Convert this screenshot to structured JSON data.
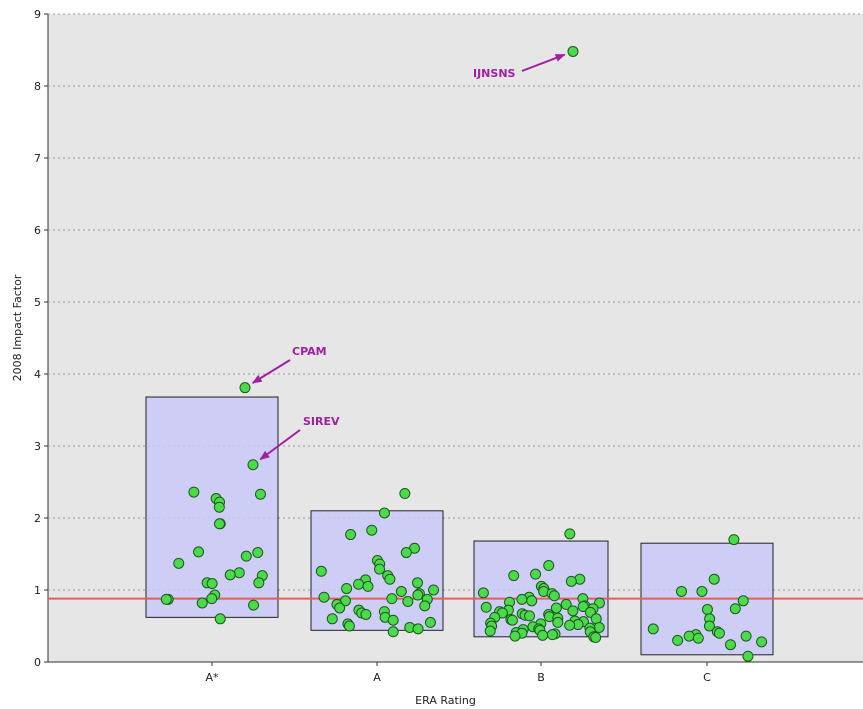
{
  "chart_data": {
    "type": "scatter",
    "title": "",
    "xlabel": "ERA Rating",
    "ylabel": "2008 Impact Factor",
    "ylim": [
      0,
      9
    ],
    "yticks": [
      "0",
      "1",
      "2",
      "3",
      "4",
      "5",
      "6",
      "7",
      "8",
      "9"
    ],
    "categories": [
      "A*",
      "A",
      "B",
      "C"
    ],
    "grid": "horizontal dotted",
    "reference_line": {
      "y": 0.88,
      "color": "#e06060"
    },
    "boxes": [
      {
        "category": "A*",
        "low": 0.62,
        "high": 3.68
      },
      {
        "category": "A",
        "low": 0.44,
        "high": 2.1
      },
      {
        "category": "B",
        "low": 0.35,
        "high": 1.68
      },
      {
        "category": "C",
        "low": 0.1,
        "high": 1.65
      }
    ],
    "series": [
      {
        "category": "A*",
        "values": [
          3.81,
          2.74,
          2.36,
          2.33,
          2.27,
          2.22,
          2.15,
          1.92,
          1.92,
          1.53,
          1.52,
          1.47,
          1.37,
          1.24,
          1.21,
          1.2,
          1.1,
          1.1,
          1.09,
          0.93,
          0.88,
          0.87,
          0.87,
          0.82,
          0.79,
          0.6
        ]
      },
      {
        "category": "A",
        "values": [
          2.34,
          2.07,
          1.83,
          1.77,
          1.58,
          1.52,
          1.41,
          1.36,
          1.29,
          1.26,
          1.2,
          1.15,
          1.14,
          1.1,
          1.08,
          1.05,
          1.02,
          1.0,
          0.98,
          0.95,
          0.93,
          0.9,
          0.88,
          0.87,
          0.85,
          0.84,
          0.8,
          0.78,
          0.75,
          0.72,
          0.7,
          0.68,
          0.66,
          0.62,
          0.6,
          0.58,
          0.55,
          0.53,
          0.5,
          0.48,
          0.46,
          0.42
        ]
      },
      {
        "category": "B",
        "values": [
          1.78,
          1.34,
          1.22,
          1.2,
          1.15,
          1.12,
          1.05,
          1.02,
          0.98,
          0.96,
          0.95,
          0.92,
          0.9,
          0.88,
          0.87,
          0.85,
          0.83,
          0.82,
          0.8,
          0.78,
          0.77,
          0.76,
          0.75,
          0.74,
          0.72,
          0.71,
          0.7,
          0.69,
          0.68,
          0.67,
          0.66,
          0.65,
          0.64,
          0.63,
          0.62,
          0.61,
          0.6,
          0.59,
          0.58,
          0.57,
          0.56,
          0.55,
          0.54,
          0.53,
          0.52,
          0.51,
          0.5,
          0.49,
          0.48,
          0.47,
          0.46,
          0.45,
          0.44,
          0.43,
          0.42,
          0.41,
          0.4,
          0.39,
          0.38,
          0.37,
          0.36,
          0.35,
          0.34
        ]
      },
      {
        "category": "C",
        "values": [
          1.7,
          1.15,
          0.98,
          0.98,
          0.85,
          0.74,
          0.73,
          0.6,
          0.5,
          0.46,
          0.42,
          0.4,
          0.38,
          0.36,
          0.36,
          0.33,
          0.3,
          0.28,
          0.24,
          0.08
        ]
      },
      {
        "category": "outlier",
        "values": [
          8.48
        ]
      }
    ],
    "annotations": [
      {
        "text": "IJNSNS",
        "target": 8.48
      },
      {
        "text": "CPAM",
        "target": 3.81
      },
      {
        "text": "SIREV",
        "target": 2.74
      }
    ],
    "colors": {
      "plot_background": "#e6e6e6",
      "box_fill": "#c8c8f8",
      "box_stroke": "#222222",
      "point_fill": "#4cd94c",
      "point_stroke": "#1a5a1a",
      "annotation": "#a020a0",
      "reference_line": "#e06060"
    }
  }
}
